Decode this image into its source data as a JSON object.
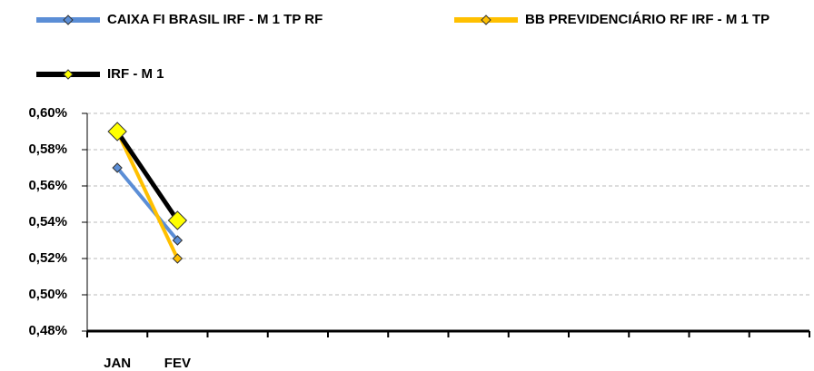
{
  "chart_data": {
    "type": "line",
    "categories": [
      "JAN",
      "FEV",
      null,
      null,
      null,
      null,
      null,
      null,
      null,
      null,
      null,
      null
    ],
    "series": [
      {
        "name": "CAIXA FI BRASIL IRF - M 1 TP RF",
        "color": "#5B8ED6",
        "values": [
          0.57,
          0.53,
          null,
          null,
          null,
          null,
          null,
          null,
          null,
          null,
          null,
          null
        ]
      },
      {
        "name": "BB PREVIDENCIÁRIO RF IRF - M 1 TP",
        "color": "#FFC000",
        "values": [
          0.59,
          0.52,
          null,
          null,
          null,
          null,
          null,
          null,
          null,
          null,
          null,
          null
        ]
      },
      {
        "name": "IRF - M 1",
        "color": "#000000",
        "values": [
          0.59,
          0.541,
          null,
          null,
          null,
          null,
          null,
          null,
          null,
          null,
          null,
          null
        ]
      }
    ],
    "ylim": [
      0.48,
      0.6
    ],
    "yticks": [
      {
        "value": 0.48,
        "label": "0,48%"
      },
      {
        "value": 0.5,
        "label": "0,50%"
      },
      {
        "value": 0.52,
        "label": "0,52%"
      },
      {
        "value": 0.54,
        "label": "0,54%"
      },
      {
        "value": 0.56,
        "label": "0,56%"
      },
      {
        "value": 0.58,
        "label": "0,58%"
      },
      {
        "value": 0.6,
        "label": "0,60%"
      }
    ],
    "grid": true
  }
}
